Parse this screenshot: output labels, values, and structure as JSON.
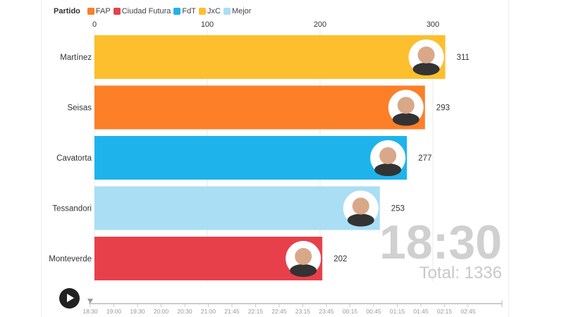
{
  "legend": {
    "title": "Partido",
    "items": [
      {
        "label": "FAP",
        "color": "#fd7f28"
      },
      {
        "label": "Ciudad Futura",
        "color": "#e8404b"
      },
      {
        "label": "FdT",
        "color": "#1fb3ec"
      },
      {
        "label": "JxC",
        "color": "#fdbf2d"
      },
      {
        "label": "Mejor",
        "color": "#a9def5"
      }
    ]
  },
  "chart_data": {
    "type": "bar",
    "orientation": "horizontal",
    "categories": [
      "Martínez",
      "Seisas",
      "Cavatorta",
      "Tessandori",
      "Monteverde"
    ],
    "values": [
      311,
      293,
      277,
      253,
      202
    ],
    "parties": [
      "JxC",
      "FAP",
      "FdT",
      "Mejor",
      "Ciudad Futura"
    ],
    "xlim": [
      0,
      360
    ],
    "xticks": [
      0,
      100,
      200,
      300
    ],
    "grid": true,
    "legend_position": "top-left"
  },
  "clock": "18:30",
  "total": "Total: 1336",
  "timeline": {
    "labels": [
      "18:30",
      "19:00",
      "19:30",
      "20:00",
      "20:30",
      "21:00",
      "21:45",
      "22:15",
      "22:45",
      "23:15",
      "23:45",
      "00:15",
      "00:45",
      "01:15",
      "01:45",
      "02:15",
      "02:45"
    ],
    "current": "18:30"
  },
  "play_icon": "play-icon"
}
